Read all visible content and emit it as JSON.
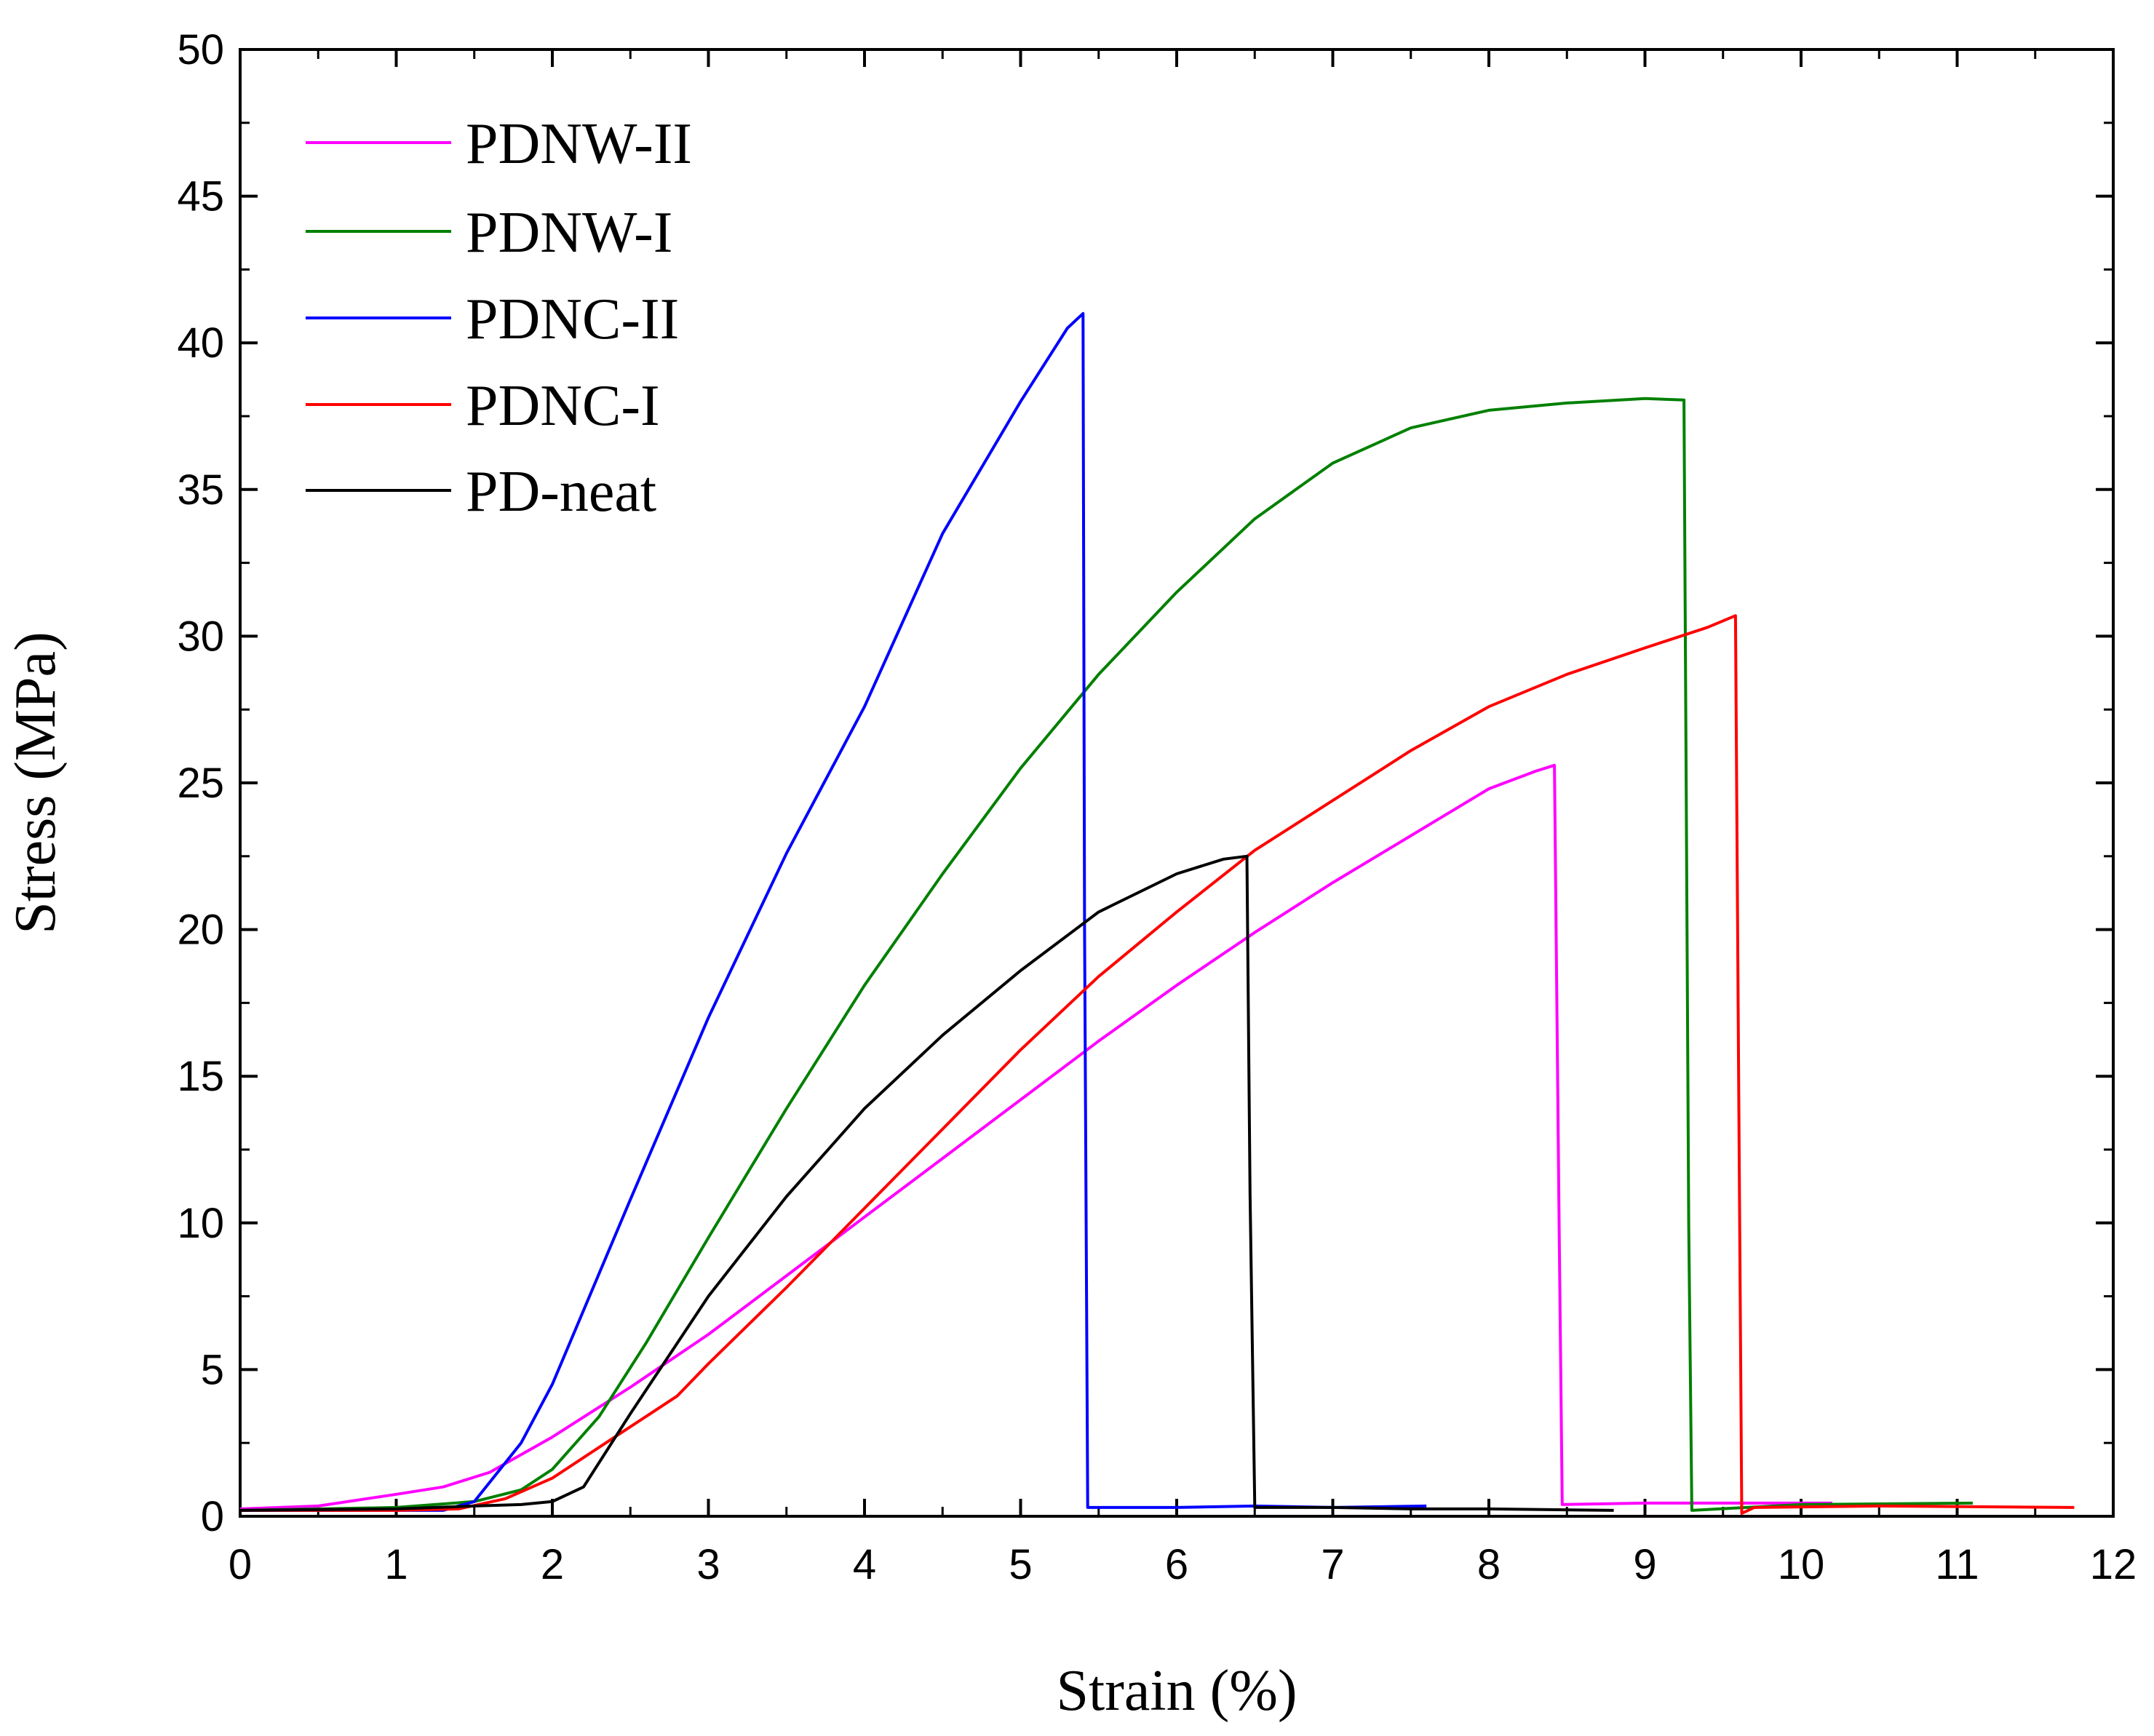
{
  "chart_data": {
    "type": "line",
    "title": "",
    "xlabel": "Strain (%)",
    "ylabel": "Stress (MPa)",
    "xlim": [
      0,
      12
    ],
    "ylim": [
      0,
      50
    ],
    "xticks": [
      0,
      1,
      2,
      3,
      4,
      5,
      6,
      7,
      8,
      9,
      10,
      11,
      12
    ],
    "xtick_labels": [
      "0",
      "1",
      "2",
      "3",
      "4",
      "5",
      "6",
      "7",
      "8",
      "9",
      "10",
      "11",
      "12"
    ],
    "yticks": [
      0,
      5,
      10,
      15,
      20,
      25,
      30,
      35,
      40,
      45,
      50
    ],
    "ytick_labels": [
      "0",
      "5",
      "10",
      "15",
      "20",
      "25",
      "30",
      "35",
      "40",
      "45",
      "50"
    ],
    "grid": false,
    "legend_position": "top-left",
    "series": [
      {
        "name": "PDNW-II",
        "color": "#ff00ff",
        "x": [
          0,
          0.5,
          1.0,
          1.3,
          1.6,
          2.0,
          2.5,
          3.0,
          3.5,
          4.0,
          4.5,
          5.0,
          5.5,
          6.0,
          6.5,
          7.0,
          7.5,
          8.0,
          8.3,
          8.42,
          8.45,
          8.47,
          9.0,
          9.6,
          10.2
        ],
        "values": [
          0.25,
          0.35,
          0.75,
          1.0,
          1.5,
          2.7,
          4.4,
          6.2,
          8.2,
          10.2,
          12.2,
          14.2,
          16.2,
          18.1,
          19.9,
          21.6,
          23.2,
          24.8,
          25.4,
          25.6,
          10.0,
          0.4,
          0.45,
          0.45,
          0.45
        ]
      },
      {
        "name": "PDNW-I",
        "color": "#008000",
        "x": [
          0,
          1.0,
          1.5,
          1.8,
          2.0,
          2.3,
          2.6,
          3.0,
          3.5,
          4.0,
          4.5,
          5.0,
          5.5,
          6.0,
          6.5,
          7.0,
          7.5,
          8.0,
          8.5,
          9.0,
          9.25,
          9.28,
          9.3,
          10.0,
          11.1
        ],
        "values": [
          0.2,
          0.3,
          0.5,
          0.9,
          1.6,
          3.4,
          5.9,
          9.5,
          13.9,
          18.1,
          21.9,
          25.5,
          28.7,
          31.5,
          34.0,
          35.9,
          37.1,
          37.7,
          37.95,
          38.1,
          38.05,
          10.0,
          0.2,
          0.4,
          0.45
        ]
      },
      {
        "name": "PDNC-II",
        "color": "#0000ff",
        "x": [
          0,
          1.0,
          1.3,
          1.5,
          1.8,
          2.0,
          2.5,
          3.0,
          3.5,
          4.0,
          4.5,
          5.0,
          5.3,
          5.4,
          5.41,
          5.43,
          6.0,
          6.5,
          7.0,
          7.6
        ],
        "values": [
          0.2,
          0.2,
          0.2,
          0.5,
          2.5,
          4.5,
          10.8,
          17.0,
          22.6,
          27.6,
          33.5,
          38.0,
          40.5,
          41.0,
          20.0,
          0.3,
          0.3,
          0.35,
          0.3,
          0.35
        ]
      },
      {
        "name": "PDNC-I",
        "color": "#ff0000",
        "x": [
          0,
          1.0,
          1.4,
          1.7,
          2.0,
          2.4,
          2.8,
          3.0,
          3.5,
          4.0,
          4.5,
          5.0,
          5.5,
          6.0,
          6.5,
          7.0,
          7.5,
          8.0,
          8.5,
          9.0,
          9.4,
          9.58,
          9.6,
          9.62,
          9.7,
          10.5,
          11.75
        ],
        "values": [
          0.2,
          0.2,
          0.25,
          0.6,
          1.3,
          2.7,
          4.1,
          5.2,
          7.8,
          10.5,
          13.2,
          15.9,
          18.4,
          20.6,
          22.7,
          24.4,
          26.1,
          27.6,
          28.7,
          29.6,
          30.3,
          30.7,
          15.0,
          0.1,
          0.3,
          0.35,
          0.3
        ]
      },
      {
        "name": "PD-neat",
        "color": "#000000",
        "x": [
          0,
          1.0,
          1.5,
          1.8,
          2.0,
          2.2,
          2.5,
          3.0,
          3.5,
          4.0,
          4.5,
          5.0,
          5.5,
          6.0,
          6.3,
          6.45,
          6.47,
          6.5,
          7.0,
          7.5,
          8.0,
          8.8
        ],
        "values": [
          0.2,
          0.25,
          0.35,
          0.4,
          0.5,
          1.0,
          3.5,
          7.5,
          10.9,
          13.9,
          16.4,
          18.6,
          20.6,
          21.9,
          22.4,
          22.5,
          11.0,
          0.3,
          0.3,
          0.25,
          0.25,
          0.2
        ]
      }
    ]
  }
}
